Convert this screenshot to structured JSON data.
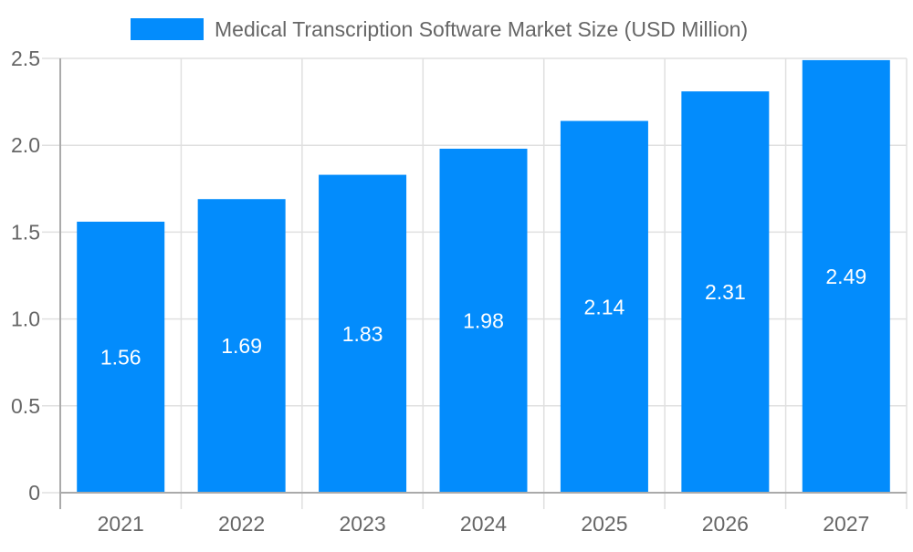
{
  "chart_data": {
    "type": "bar",
    "title": "",
    "legend": {
      "position": "top",
      "entries": [
        "Medical Transcription Software Market Size (USD Million)"
      ]
    },
    "categories": [
      "2021",
      "2022",
      "2023",
      "2024",
      "2025",
      "2026",
      "2027"
    ],
    "series": [
      {
        "name": "Medical Transcription Software Market Size (USD Million)",
        "values": [
          1.56,
          1.69,
          1.83,
          1.98,
          2.14,
          2.31,
          2.49
        ],
        "color": "#038cfc"
      }
    ],
    "data_labels": [
      "1.56",
      "1.69",
      "1.83",
      "1.98",
      "2.14",
      "2.31",
      "2.49"
    ],
    "y_ticks": [
      "0",
      "0.5",
      "1.0",
      "1.5",
      "2.0",
      "2.5"
    ],
    "ylim": [
      0,
      2.5
    ],
    "grid": true,
    "xlabel": "",
    "ylabel": ""
  }
}
